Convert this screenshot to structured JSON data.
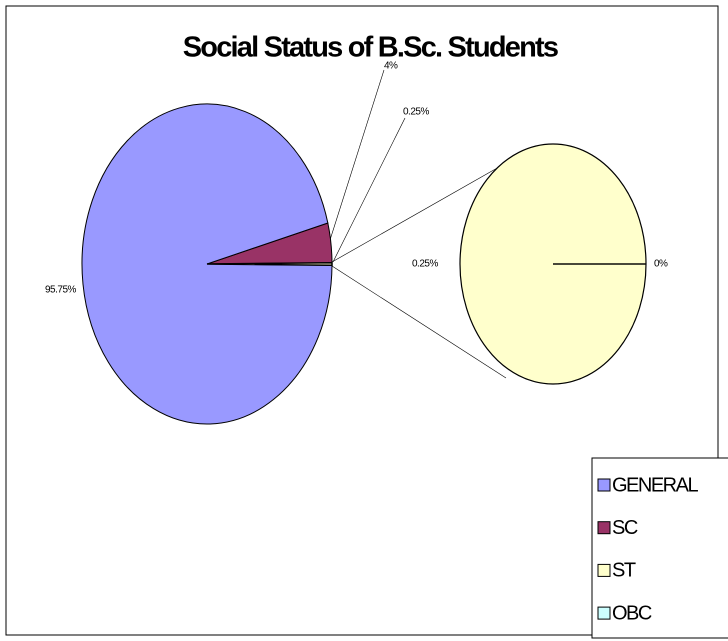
{
  "chart_data": {
    "type": "pie",
    "title": "Social Status of B.Sc. Students",
    "categories": [
      "GENERAL",
      "SC",
      "ST",
      "OBC"
    ],
    "values": [
      95.75,
      4,
      0.25,
      0
    ],
    "value_labels": [
      "95.75%",
      "4%",
      "0.25%",
      "0%"
    ],
    "colors": [
      "#9999ff",
      "#993366",
      "#ffffcc",
      "#ccffff"
    ],
    "second_pie_count": 2,
    "other": {
      "value": 0.25,
      "label": "0.25%"
    },
    "legend": "right"
  }
}
